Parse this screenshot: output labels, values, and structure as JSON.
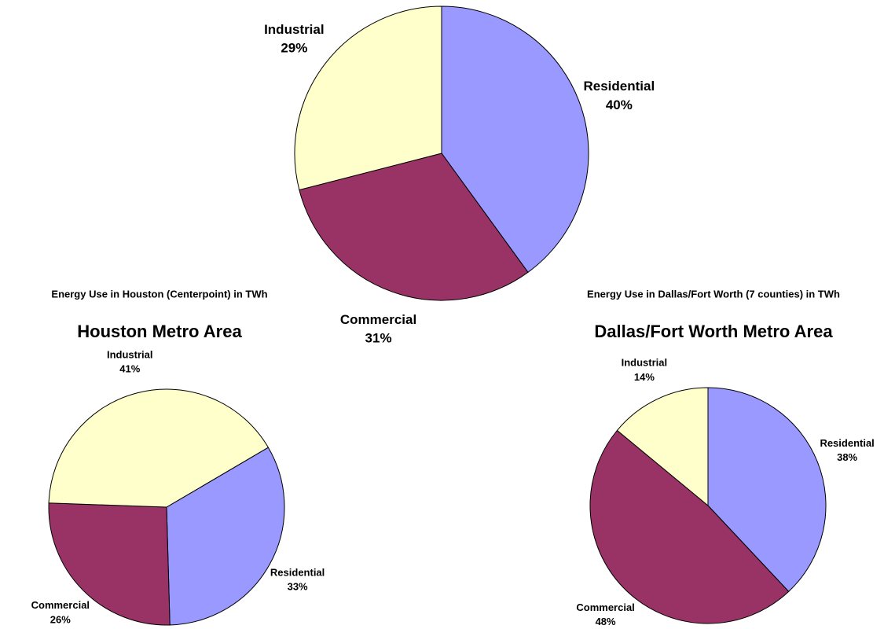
{
  "chart_data": [
    {
      "type": "pie",
      "categories": [
        "Residential",
        "Commercial",
        "Industrial"
      ],
      "values": [
        40,
        31,
        29
      ],
      "value_labels": [
        "40%",
        "31%",
        "29%"
      ],
      "colors": [
        "#9999ff",
        "#993366",
        "#ffffcc"
      ]
    },
    {
      "type": "pie",
      "subtitle": "Energy Use in Houston (Centerpoint) in TWh",
      "title": "Houston Metro Area",
      "categories": [
        "Residential",
        "Commercial",
        "Industrial"
      ],
      "values": [
        33,
        26,
        41
      ],
      "value_labels": [
        "33%",
        "26%",
        "41%"
      ],
      "colors": [
        "#9999ff",
        "#993366",
        "#ffffcc"
      ]
    },
    {
      "type": "pie",
      "subtitle": "Energy Use in Dallas/Fort Worth (7 counties) in TWh",
      "title": "Dallas/Fort Worth Metro Area",
      "categories": [
        "Residential",
        "Commercial",
        "Industrial"
      ],
      "values": [
        38,
        48,
        14
      ],
      "value_labels": [
        "38%",
        "48%",
        "14%"
      ],
      "colors": [
        "#9999ff",
        "#993366",
        "#ffffcc"
      ]
    }
  ]
}
